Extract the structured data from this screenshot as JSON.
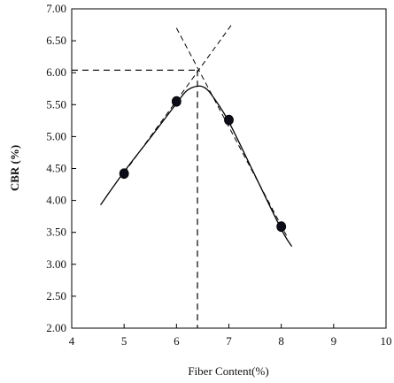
{
  "chart_data": {
    "type": "scatter",
    "title": "",
    "xlabel": "Fiber Content(%)",
    "ylabel": "CBR (%)",
    "xlim": [
      4,
      10
    ],
    "ylim": [
      2.0,
      7.0
    ],
    "x_ticks": [
      4,
      5,
      6,
      7,
      8,
      9,
      10
    ],
    "x_tick_labels": [
      "4",
      "5",
      "6",
      "7",
      "8",
      "9",
      "10"
    ],
    "y_ticks": [
      2.0,
      2.5,
      3.0,
      3.5,
      4.0,
      4.5,
      5.0,
      5.5,
      6.0,
      6.5,
      7.0
    ],
    "y_tick_labels": [
      "2.00",
      "2.50",
      "3.00",
      "3.50",
      "4.00",
      "4.50",
      "5.00",
      "5.50",
      "6.00",
      "6.50",
      "7.00"
    ],
    "grid": false,
    "series": [
      {
        "kind": "points",
        "x": [
          5,
          6,
          7,
          8
        ],
        "y": [
          4.42,
          5.55,
          5.26,
          3.59
        ]
      },
      {
        "kind": "fitted-curve",
        "x": [
          4.55,
          5.0,
          5.5,
          6.0,
          6.2,
          6.4,
          6.55,
          6.7,
          7.0,
          7.5,
          8.0,
          8.2
        ],
        "y": [
          3.93,
          4.45,
          4.98,
          5.52,
          5.72,
          5.79,
          5.76,
          5.62,
          5.23,
          4.39,
          3.55,
          3.28
        ]
      },
      {
        "kind": "dashed-tangent",
        "x": [
          5.0,
          7.05
        ],
        "y": [
          4.43,
          6.75
        ]
      },
      {
        "kind": "dashed-tangent",
        "x": [
          6.0,
          8.1
        ],
        "y": [
          6.7,
          3.45
        ]
      }
    ],
    "reference_lines": {
      "horizontal_y": 6.04,
      "vertical_x": 6.4
    }
  }
}
